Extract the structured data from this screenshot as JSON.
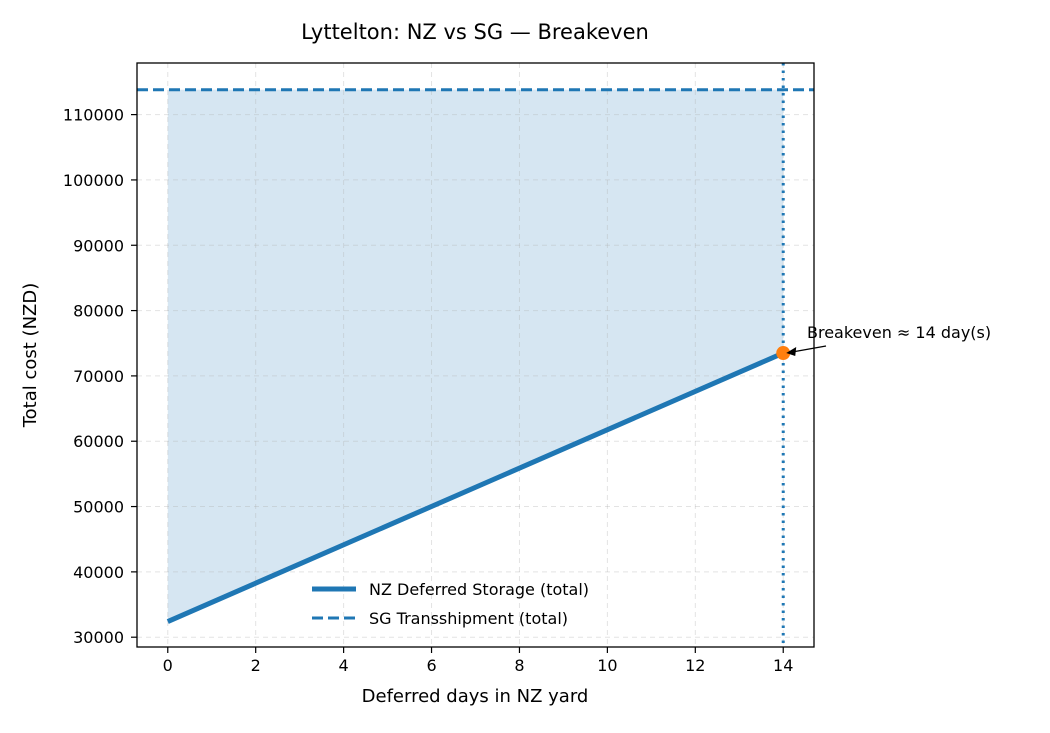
{
  "chart_data": {
    "type": "line",
    "title": "Lyttelton: NZ vs SG — Breakeven",
    "xlabel": "Deferred days in NZ yard",
    "ylabel": "Total cost (NZD)",
    "xlim": [
      -0.7,
      14.7
    ],
    "ylim": [
      28500,
      117900
    ],
    "x_ticks": [
      0,
      2,
      4,
      6,
      8,
      10,
      12,
      14
    ],
    "y_ticks": [
      30000,
      40000,
      50000,
      60000,
      70000,
      80000,
      90000,
      100000,
      110000
    ],
    "grid": true,
    "legend_position": "lower center",
    "series": [
      {
        "name": "NZ Deferred Storage (total)",
        "style": "solid",
        "color": "#1f77b4",
        "x": [
          0,
          14
        ],
        "y": [
          32400,
          73500
        ]
      },
      {
        "name": "SG Transshipment (total)",
        "style": "dashed",
        "color": "#1f77b4",
        "y_constant": 113800
      }
    ],
    "shaded_region": {
      "x_from": 0,
      "x_to": 14,
      "lower": "NZ Deferred Storage (total)",
      "upper": 113800,
      "color": "#d6e6f2"
    },
    "breakeven": {
      "x": 14,
      "y": 73500,
      "marker_color": "#ff7f0e",
      "vline_style": "dotted",
      "annotation": "Breakeven ≈ 14 day(s)"
    }
  }
}
